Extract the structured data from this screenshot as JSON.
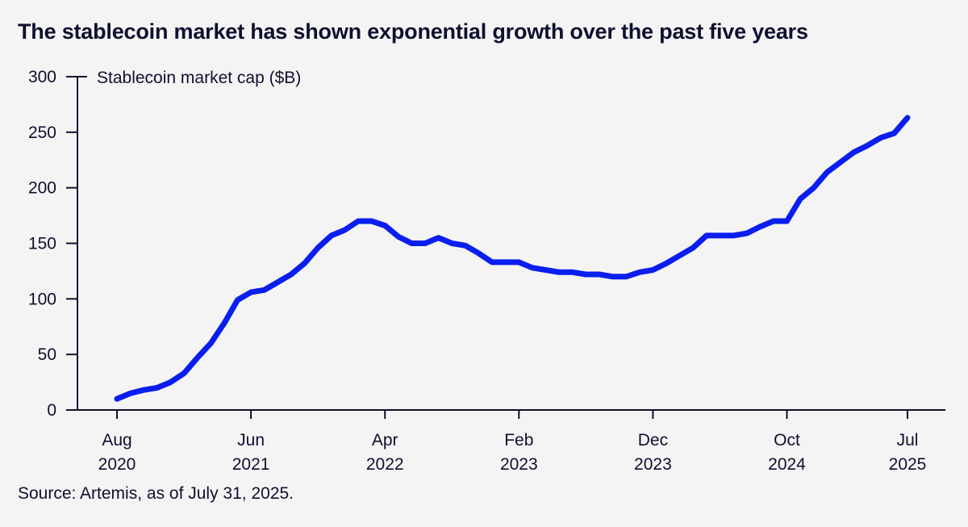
{
  "chart_data": {
    "type": "line",
    "title": "The stablecoin market has shown exponential growth over the past five years",
    "ylabel": "Stablecoin market cap ($B)",
    "xlabel": "",
    "ylim": [
      0,
      300
    ],
    "yticks": [
      0,
      50,
      100,
      150,
      200,
      250,
      300
    ],
    "xticks": [
      {
        "month_index": 0,
        "line1": "Aug",
        "line2": "2020"
      },
      {
        "month_index": 10,
        "line1": "Jun",
        "line2": "2021"
      },
      {
        "month_index": 20,
        "line1": "Apr",
        "line2": "2022"
      },
      {
        "month_index": 30,
        "line1": "Feb",
        "line2": "2023"
      },
      {
        "month_index": 40,
        "line1": "Dec",
        "line2": "2023"
      },
      {
        "month_index": 50,
        "line1": "Oct",
        "line2": "2024"
      },
      {
        "month_index": 59,
        "line1": "Jul",
        "line2": "2025"
      }
    ],
    "grid": false,
    "legend": "none",
    "series": [
      {
        "name": "Stablecoin market cap ($B)",
        "color": "#0a1ef0",
        "x": [
          "2020-08",
          "2020-09",
          "2020-10",
          "2020-11",
          "2020-12",
          "2021-01",
          "2021-02",
          "2021-03",
          "2021-04",
          "2021-05",
          "2021-06",
          "2021-07",
          "2021-08",
          "2021-09",
          "2021-10",
          "2021-11",
          "2021-12",
          "2022-01",
          "2022-02",
          "2022-03",
          "2022-04",
          "2022-05",
          "2022-06",
          "2022-07",
          "2022-08",
          "2022-09",
          "2022-10",
          "2022-11",
          "2022-12",
          "2023-01",
          "2023-02",
          "2023-03",
          "2023-04",
          "2023-05",
          "2023-06",
          "2023-07",
          "2023-08",
          "2023-09",
          "2023-10",
          "2023-11",
          "2023-12",
          "2024-01",
          "2024-02",
          "2024-03",
          "2024-04",
          "2024-05",
          "2024-06",
          "2024-07",
          "2024-08",
          "2024-09",
          "2024-10",
          "2024-11",
          "2024-12",
          "2025-01",
          "2025-02",
          "2025-03",
          "2025-04",
          "2025-05",
          "2025-06",
          "2025-07"
        ],
        "values": [
          10,
          15,
          18,
          20,
          25,
          33,
          47,
          60,
          78,
          99,
          106,
          108,
          115,
          122,
          132,
          146,
          157,
          162,
          170,
          170,
          166,
          156,
          150,
          150,
          155,
          150,
          148,
          141,
          133,
          133,
          133,
          128,
          126,
          124,
          124,
          122,
          122,
          120,
          120,
          124,
          126,
          132,
          139,
          146,
          157,
          157,
          157,
          159,
          165,
          170,
          170,
          190,
          200,
          214,
          223,
          232,
          238,
          245,
          249,
          263
        ]
      }
    ]
  },
  "footer": {
    "source": "Source: Artemis, as of July 31, 2025."
  },
  "colors": {
    "text": "#0f1030",
    "axis": "#0f1030",
    "line": "#0a1ef0",
    "background": "#f4f4f4"
  }
}
